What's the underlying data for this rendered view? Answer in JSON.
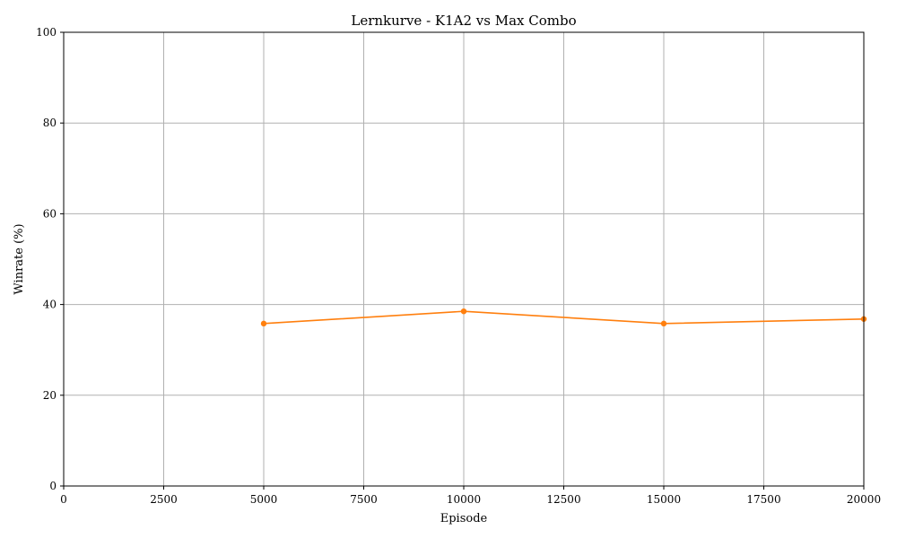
{
  "chart_data": {
    "type": "line",
    "title": "Lernkurve - K1A2 vs Max Combo",
    "xlabel": "Episode",
    "ylabel": "Winrate (%)",
    "xlim": [
      0,
      20000
    ],
    "ylim": [
      0,
      100
    ],
    "xticks": [
      0,
      2500,
      5000,
      7500,
      10000,
      12500,
      15000,
      17500,
      20000
    ],
    "yticks": [
      0,
      20,
      40,
      60,
      80,
      100
    ],
    "grid": true,
    "series": [
      {
        "color": "#ff7f0e",
        "marker": "circle",
        "x": [
          5000,
          10000,
          15000,
          20000
        ],
        "y": [
          35.8,
          38.5,
          35.8,
          36.8
        ]
      }
    ]
  }
}
